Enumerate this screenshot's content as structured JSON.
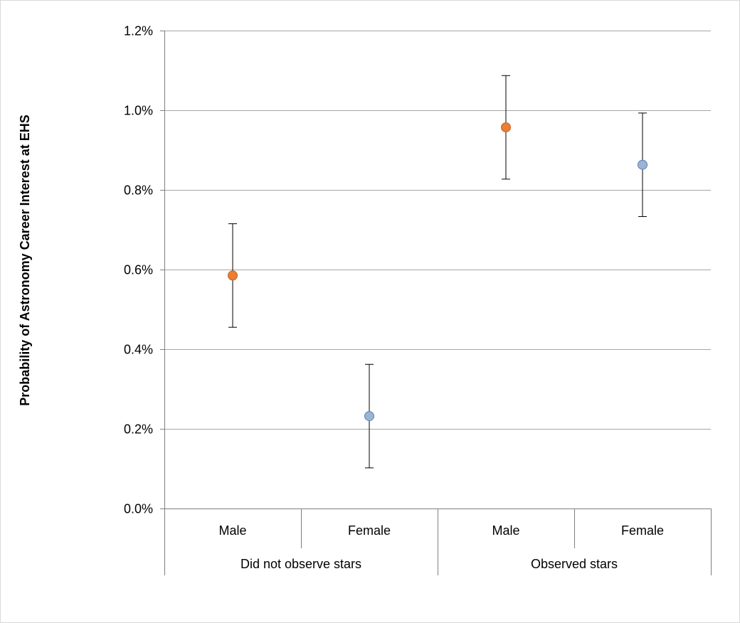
{
  "chart_data": {
    "type": "scatter",
    "title": "",
    "xlabel": "",
    "ylabel": "Probability of Astronomy Career Interest at EHS",
    "ylim": [
      0,
      0.012
    ],
    "y_ticks": [
      0.0,
      0.002,
      0.004,
      0.006,
      0.008,
      0.01,
      0.012
    ],
    "y_tick_labels": [
      "0.0%",
      "0.2%",
      "0.4%",
      "0.6%",
      "0.8%",
      "1.0%",
      "1.2%"
    ],
    "grid": true,
    "legend": false,
    "groups": [
      {
        "label": "Did not observe stars",
        "categories": [
          "Male",
          "Female"
        ]
      },
      {
        "label": "Observed stars",
        "categories": [
          "Male",
          "Female"
        ]
      }
    ],
    "points": [
      {
        "group": "Did not observe stars",
        "category": "Male",
        "value": 0.00585,
        "lower": 0.00455,
        "upper": 0.00715,
        "color": "#ED7D31"
      },
      {
        "group": "Did not observe stars",
        "category": "Female",
        "value": 0.00232,
        "lower": 0.00102,
        "upper": 0.00362,
        "color": "#9DB3D2"
      },
      {
        "group": "Observed stars",
        "category": "Male",
        "value": 0.00957,
        "lower": 0.00827,
        "upper": 0.01087,
        "color": "#ED7D31"
      },
      {
        "group": "Observed stars",
        "category": "Female",
        "value": 0.00863,
        "lower": 0.00733,
        "upper": 0.00993,
        "color": "#9DB3D2"
      }
    ],
    "colors": {
      "grid": "#a6a6a6",
      "axis": "#7f7f7f",
      "error_bar": "#000000",
      "male_marker": "#ED7D31",
      "female_marker": "#9DB3D2",
      "male_marker_edge": "#C0622A",
      "female_marker_edge": "#5B7FB0"
    }
  }
}
